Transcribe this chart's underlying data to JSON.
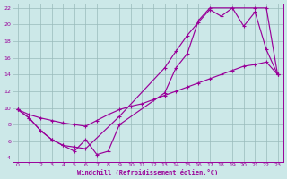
{
  "bg_color": "#cce8e8",
  "line_color": "#990099",
  "grid_color": "#99bbbb",
  "xlabel": "Windchill (Refroidissement éolien,°C)",
  "xlim": [
    -0.5,
    23.5
  ],
  "ylim": [
    3.5,
    22.5
  ],
  "yticks": [
    4,
    6,
    8,
    10,
    12,
    14,
    16,
    18,
    20,
    22
  ],
  "xticks": [
    0,
    1,
    2,
    3,
    4,
    5,
    6,
    7,
    8,
    9,
    10,
    11,
    12,
    13,
    14,
    15,
    16,
    17,
    18,
    19,
    20,
    21,
    22,
    23
  ],
  "line1_x": [
    0,
    1,
    2,
    3,
    4,
    5,
    6,
    9,
    13,
    14,
    15,
    16,
    17,
    18,
    19,
    20,
    21,
    22,
    23
  ],
  "line1_y": [
    9.8,
    8.8,
    7.3,
    6.2,
    5.5,
    5.3,
    5.1,
    9.0,
    14.8,
    16.8,
    18.7,
    20.3,
    21.8,
    21.0,
    22.0,
    19.8,
    21.5,
    17.0,
    14.0
  ],
  "line2_x": [
    0,
    1,
    2,
    3,
    4,
    5,
    6,
    7,
    8,
    9,
    10,
    11,
    12,
    13,
    14,
    15,
    16,
    17,
    18,
    19,
    20,
    21,
    22,
    23
  ],
  "line2_y": [
    9.8,
    9.2,
    8.8,
    8.5,
    8.2,
    8.0,
    7.8,
    8.5,
    9.2,
    9.8,
    10.2,
    10.5,
    11.0,
    11.5,
    12.0,
    12.5,
    13.0,
    13.5,
    14.0,
    14.5,
    15.0,
    15.2,
    15.5,
    14.0
  ],
  "line3_x": [
    0,
    1,
    2,
    3,
    4,
    5,
    6,
    7,
    8,
    9,
    13,
    14,
    15,
    16,
    17,
    21,
    22,
    23
  ],
  "line3_y": [
    9.8,
    8.8,
    7.3,
    6.2,
    5.5,
    4.8,
    6.2,
    4.4,
    4.8,
    8.0,
    11.8,
    14.8,
    16.5,
    20.5,
    22.0,
    22.0,
    22.0,
    14.0
  ]
}
